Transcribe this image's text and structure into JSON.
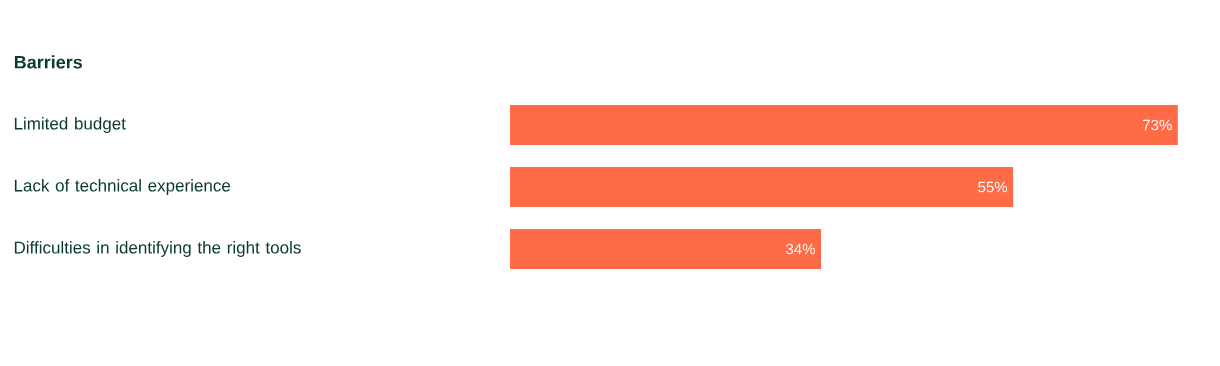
{
  "chart_data": {
    "type": "bar",
    "orientation": "horizontal",
    "title": "Barriers",
    "categories": [
      "Limited budget",
      "Lack of technical experience",
      "Difficulties in identifying the right tools"
    ],
    "values": [
      73,
      55,
      34
    ],
    "value_labels": [
      "73%",
      "55%",
      "34%"
    ],
    "color": "#ff6b47"
  }
}
